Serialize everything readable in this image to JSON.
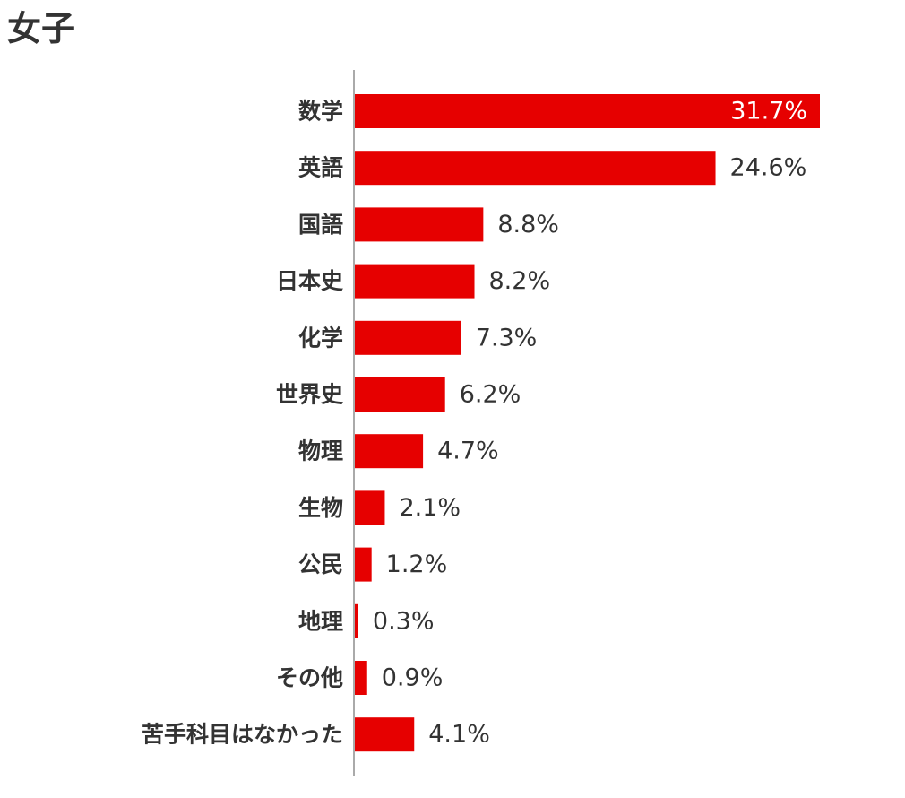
{
  "chart_data": {
    "type": "bar",
    "orientation": "horizontal",
    "title": "女子",
    "categories": [
      "数学",
      "英語",
      "国語",
      "日本史",
      "化学",
      "世界史",
      "物理",
      "生物",
      "公民",
      "地理",
      "その他",
      "苦手科目はなかった"
    ],
    "values": [
      31.7,
      24.6,
      8.8,
      8.2,
      7.3,
      6.2,
      4.7,
      2.1,
      1.2,
      0.3,
      0.9,
      4.1
    ],
    "value_labels": [
      "31.7%",
      "24.6%",
      "8.8%",
      "8.2%",
      "7.3%",
      "6.2%",
      "4.7%",
      "2.1%",
      "1.2%",
      "0.3%",
      "0.9%",
      "4.1%"
    ],
    "unit": "%",
    "bar_color": "#e60000",
    "axis_color": "#aaaaaa",
    "xlim": [
      0,
      31.7
    ],
    "grid": false,
    "legend": "none"
  }
}
